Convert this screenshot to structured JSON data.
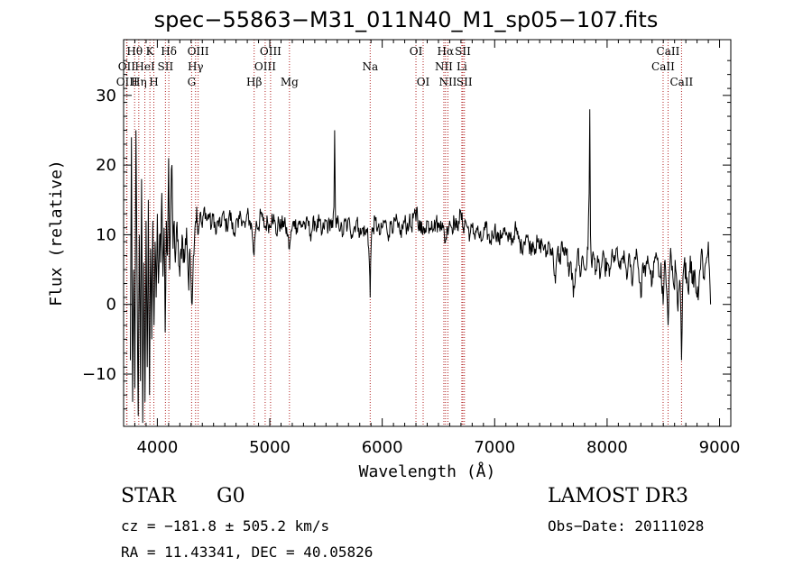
{
  "header": {
    "title": "spec−55863−M31_011N40_M1_sp05−107.fits"
  },
  "info": {
    "obj_class": "STAR",
    "subclass": "G0",
    "survey": "LAMOST DR3",
    "cz_line": "cz = −181.8 ± 505.2 km/s",
    "radec_line": "RA =  11.43341, DEC =  40.05826",
    "obsdate_line": "Obs−Date: 20111028"
  },
  "chart_data": {
    "type": "line",
    "title": "spec−55863−M31_011N40_M1_sp05−107.fits",
    "xlabel": "Wavelength (Å)",
    "ylabel": "Flux (relative)",
    "xlim": [
      3700,
      9100
    ],
    "ylim": [
      -17.5,
      38
    ],
    "xticks": [
      4000,
      5000,
      6000,
      7000,
      8000,
      9000
    ],
    "yticks": [
      -10,
      0,
      10,
      20,
      30
    ],
    "line_color": "#000000",
    "marker_color": "#b22222",
    "spectrum_anchors": [
      [
        3760,
        -8
      ],
      [
        3770,
        24
      ],
      [
        3780,
        -14
      ],
      [
        3790,
        5
      ],
      [
        3800,
        -12
      ],
      [
        3810,
        25
      ],
      [
        3820,
        3
      ],
      [
        3830,
        -16
      ],
      [
        3840,
        10
      ],
      [
        3850,
        -11
      ],
      [
        3860,
        18
      ],
      [
        3870,
        -17
      ],
      [
        3880,
        6
      ],
      [
        3890,
        -14
      ],
      [
        3900,
        12
      ],
      [
        3910,
        -9
      ],
      [
        3920,
        15
      ],
      [
        3930,
        -13
      ],
      [
        3940,
        8
      ],
      [
        3950,
        -5
      ],
      [
        3960,
        12
      ],
      [
        3970,
        -3
      ],
      [
        3980,
        9
      ],
      [
        3990,
        1
      ],
      [
        4000,
        13
      ],
      [
        4010,
        3
      ],
      [
        4020,
        10
      ],
      [
        4030,
        6
      ],
      [
        4040,
        16
      ],
      [
        4050,
        4
      ],
      [
        4060,
        11
      ],
      [
        4070,
        -4
      ],
      [
        4080,
        12
      ],
      [
        4090,
        7
      ],
      [
        4100,
        21
      ],
      [
        4110,
        5
      ],
      [
        4120,
        14
      ],
      [
        4130,
        20
      ],
      [
        4140,
        8
      ],
      [
        4150,
        12
      ],
      [
        4160,
        6
      ],
      [
        4170,
        11
      ],
      [
        4180,
        9
      ],
      [
        4200,
        4
      ],
      [
        4220,
        10
      ],
      [
        4240,
        6
      ],
      [
        4260,
        11
      ],
      [
        4280,
        2
      ],
      [
        4290,
        8
      ],
      [
        4300,
        3
      ],
      [
        4310,
        0
      ],
      [
        4320,
        7
      ],
      [
        4330,
        9
      ],
      [
        4340,
        12
      ],
      [
        4350,
        14
      ],
      [
        4360,
        10
      ],
      [
        4380,
        13
      ],
      [
        4400,
        11
      ],
      [
        4420,
        14
      ],
      [
        4440,
        12
      ],
      [
        4460,
        13
      ],
      [
        4480,
        11
      ],
      [
        4500,
        13
      ],
      [
        4520,
        10
      ],
      [
        4540,
        12
      ],
      [
        4560,
        11
      ],
      [
        4580,
        13
      ],
      [
        4600,
        12
      ],
      [
        4620,
        11
      ],
      [
        4640,
        13
      ],
      [
        4660,
        12
      ],
      [
        4680,
        10
      ],
      [
        4700,
        12
      ],
      [
        4720,
        11
      ],
      [
        4740,
        13
      ],
      [
        4760,
        12
      ],
      [
        4780,
        11
      ],
      [
        4800,
        13
      ],
      [
        4820,
        12
      ],
      [
        4840,
        11
      ],
      [
        4850,
        9
      ],
      [
        4860,
        7
      ],
      [
        4870,
        10
      ],
      [
        4880,
        12
      ],
      [
        4900,
        11
      ],
      [
        4920,
        13
      ],
      [
        4940,
        12
      ],
      [
        4960,
        11
      ],
      [
        4980,
        12
      ],
      [
        5000,
        11
      ],
      [
        5020,
        13
      ],
      [
        5040,
        12
      ],
      [
        5060,
        10
      ],
      [
        5080,
        12
      ],
      [
        5100,
        11
      ],
      [
        5120,
        12
      ],
      [
        5140,
        11
      ],
      [
        5160,
        10
      ],
      [
        5170,
        8
      ],
      [
        5180,
        9
      ],
      [
        5200,
        11
      ],
      [
        5220,
        12
      ],
      [
        5240,
        11
      ],
      [
        5260,
        12
      ],
      [
        5280,
        11
      ],
      [
        5300,
        12
      ],
      [
        5320,
        11
      ],
      [
        5340,
        12
      ],
      [
        5360,
        10
      ],
      [
        5380,
        11
      ],
      [
        5400,
        12
      ],
      [
        5420,
        11
      ],
      [
        5440,
        12
      ],
      [
        5460,
        10
      ],
      [
        5480,
        11
      ],
      [
        5500,
        12
      ],
      [
        5520,
        11
      ],
      [
        5540,
        12
      ],
      [
        5560,
        11
      ],
      [
        5570,
        14
      ],
      [
        5577,
        25
      ],
      [
        5584,
        13
      ],
      [
        5590,
        11
      ],
      [
        5610,
        12
      ],
      [
        5630,
        11
      ],
      [
        5650,
        10
      ],
      [
        5670,
        12
      ],
      [
        5690,
        11
      ],
      [
        5710,
        12
      ],
      [
        5730,
        10
      ],
      [
        5750,
        11
      ],
      [
        5770,
        12
      ],
      [
        5790,
        11
      ],
      [
        5810,
        10
      ],
      [
        5830,
        11
      ],
      [
        5850,
        10
      ],
      [
        5870,
        11
      ],
      [
        5880,
        8
      ],
      [
        5890,
        4
      ],
      [
        5893,
        1
      ],
      [
        5897,
        6
      ],
      [
        5905,
        10
      ],
      [
        5920,
        11
      ],
      [
        5940,
        12
      ],
      [
        5960,
        11
      ],
      [
        5980,
        10
      ],
      [
        6000,
        11
      ],
      [
        6020,
        12
      ],
      [
        6040,
        11
      ],
      [
        6060,
        10
      ],
      [
        6080,
        12
      ],
      [
        6100,
        11
      ],
      [
        6120,
        12
      ],
      [
        6140,
        11
      ],
      [
        6160,
        10
      ],
      [
        6180,
        11
      ],
      [
        6200,
        12
      ],
      [
        6220,
        11
      ],
      [
        6240,
        12
      ],
      [
        6260,
        11
      ],
      [
        6280,
        13
      ],
      [
        6300,
        12
      ],
      [
        6310,
        14
      ],
      [
        6320,
        11
      ],
      [
        6340,
        12
      ],
      [
        6360,
        10
      ],
      [
        6380,
        11
      ],
      [
        6400,
        12
      ],
      [
        6420,
        11
      ],
      [
        6440,
        12
      ],
      [
        6460,
        11
      ],
      [
        6480,
        12
      ],
      [
        6500,
        11
      ],
      [
        6520,
        12
      ],
      [
        6540,
        11
      ],
      [
        6562,
        9
      ],
      [
        6580,
        11
      ],
      [
        6600,
        12
      ],
      [
        6620,
        11
      ],
      [
        6640,
        12
      ],
      [
        6660,
        11
      ],
      [
        6680,
        12
      ],
      [
        6700,
        13
      ],
      [
        6720,
        11
      ],
      [
        6740,
        12
      ],
      [
        6760,
        11
      ],
      [
        6780,
        10
      ],
      [
        6800,
        11
      ],
      [
        6820,
        10
      ],
      [
        6840,
        11
      ],
      [
        6860,
        10
      ],
      [
        6880,
        9
      ],
      [
        6900,
        10
      ],
      [
        6920,
        11
      ],
      [
        6940,
        10
      ],
      [
        6960,
        9
      ],
      [
        6980,
        10
      ],
      [
        7000,
        11
      ],
      [
        7020,
        10
      ],
      [
        7040,
        9
      ],
      [
        7060,
        10
      ],
      [
        7080,
        11
      ],
      [
        7100,
        10
      ],
      [
        7120,
        9
      ],
      [
        7140,
        10
      ],
      [
        7160,
        9
      ],
      [
        7180,
        11
      ],
      [
        7200,
        10
      ],
      [
        7220,
        9
      ],
      [
        7240,
        8
      ],
      [
        7260,
        9
      ],
      [
        7280,
        10
      ],
      [
        7300,
        9
      ],
      [
        7320,
        8
      ],
      [
        7340,
        9
      ],
      [
        7360,
        8
      ],
      [
        7380,
        9
      ],
      [
        7400,
        8
      ],
      [
        7420,
        9
      ],
      [
        7440,
        8
      ],
      [
        7460,
        7
      ],
      [
        7480,
        9
      ],
      [
        7500,
        8
      ],
      [
        7520,
        7
      ],
      [
        7540,
        3
      ],
      [
        7560,
        8
      ],
      [
        7580,
        6
      ],
      [
        7600,
        9
      ],
      [
        7620,
        7
      ],
      [
        7640,
        8
      ],
      [
        7660,
        4
      ],
      [
        7680,
        6
      ],
      [
        7700,
        1
      ],
      [
        7720,
        5
      ],
      [
        7740,
        8
      ],
      [
        7760,
        4
      ],
      [
        7780,
        7
      ],
      [
        7800,
        5
      ],
      [
        7820,
        6
      ],
      [
        7830,
        8
      ],
      [
        7840,
        16
      ],
      [
        7846,
        28
      ],
      [
        7852,
        10
      ],
      [
        7860,
        6
      ],
      [
        7880,
        7
      ],
      [
        7900,
        5
      ],
      [
        7920,
        6
      ],
      [
        7940,
        4
      ],
      [
        7960,
        7
      ],
      [
        7980,
        5
      ],
      [
        8000,
        6
      ],
      [
        8020,
        4
      ],
      [
        8040,
        7
      ],
      [
        8060,
        6
      ],
      [
        8080,
        8
      ],
      [
        8100,
        6
      ],
      [
        8120,
        5
      ],
      [
        8140,
        7
      ],
      [
        8160,
        6
      ],
      [
        8180,
        4
      ],
      [
        8200,
        7
      ],
      [
        8220,
        3
      ],
      [
        8240,
        6
      ],
      [
        8260,
        8
      ],
      [
        8280,
        5
      ],
      [
        8300,
        1
      ],
      [
        8320,
        6
      ],
      [
        8340,
        4
      ],
      [
        8360,
        7
      ],
      [
        8380,
        5
      ],
      [
        8400,
        3
      ],
      [
        8420,
        6
      ],
      [
        8440,
        7
      ],
      [
        8460,
        4
      ],
      [
        8480,
        6
      ],
      [
        8498,
        0
      ],
      [
        8510,
        6
      ],
      [
        8520,
        5
      ],
      [
        8530,
        2
      ],
      [
        8542,
        -3
      ],
      [
        8555,
        5
      ],
      [
        8570,
        7
      ],
      [
        8590,
        3
      ],
      [
        8610,
        5
      ],
      [
        8630,
        -1
      ],
      [
        8650,
        3
      ],
      [
        8662,
        -8
      ],
      [
        8675,
        4
      ],
      [
        8700,
        6
      ],
      [
        8720,
        2
      ],
      [
        8740,
        7
      ],
      [
        8760,
        3
      ],
      [
        8780,
        5
      ],
      [
        8800,
        1
      ],
      [
        8820,
        4
      ],
      [
        8840,
        8
      ],
      [
        8860,
        4
      ],
      [
        8880,
        6
      ],
      [
        8900,
        9
      ],
      [
        8910,
        5
      ],
      [
        8920,
        0
      ]
    ],
    "line_markers": [
      {
        "label": "Hθ",
        "wl": 3798,
        "tier": 0
      },
      {
        "label": "OII",
        "wl": 3727,
        "tier": 1
      },
      {
        "label": "OIII",
        "wl": 3730,
        "tier": 2
      },
      {
        "label": "K",
        "wl": 3934,
        "tier": 0
      },
      {
        "label": "HeI",
        "wl": 3889,
        "tier": 1
      },
      {
        "label": "Hη",
        "wl": 3835,
        "tier": 2
      },
      {
        "label": "H",
        "wl": 3969,
        "tier": 2
      },
      {
        "label": "Hδ",
        "wl": 4102,
        "tier": 0
      },
      {
        "label": "SII",
        "wl": 4072,
        "tier": 1
      },
      {
        "label": "OIII",
        "wl": 4363,
        "tier": 0
      },
      {
        "label": "Hγ",
        "wl": 4340,
        "tier": 1
      },
      {
        "label": "G",
        "wl": 4305,
        "tier": 2
      },
      {
        "label": "Hβ",
        "wl": 4861,
        "tier": 2
      },
      {
        "label": "OIII",
        "wl": 5007,
        "tier": 0
      },
      {
        "label": "OIII",
        "wl": 4959,
        "tier": 1
      },
      {
        "label": "Mg",
        "wl": 5175,
        "tier": 2
      },
      {
        "label": "Na",
        "wl": 5893,
        "tier": 1
      },
      {
        "label": "OI",
        "wl": 6300,
        "tier": 0
      },
      {
        "label": "OI",
        "wl": 6364,
        "tier": 2
      },
      {
        "label": "Hα",
        "wl": 6563,
        "tier": 0
      },
      {
        "label": "NII",
        "wl": 6548,
        "tier": 1
      },
      {
        "label": "NII",
        "wl": 6584,
        "tier": 2
      },
      {
        "label": "SII",
        "wl": 6717,
        "tier": 0
      },
      {
        "label": "Li",
        "wl": 6708,
        "tier": 1
      },
      {
        "label": "SII",
        "wl": 6731,
        "tier": 2
      },
      {
        "label": "CaII",
        "wl": 8542,
        "tier": 0
      },
      {
        "label": "CaII",
        "wl": 8498,
        "tier": 1
      },
      {
        "label": "CaII",
        "wl": 8662,
        "tier": 2
      }
    ]
  }
}
